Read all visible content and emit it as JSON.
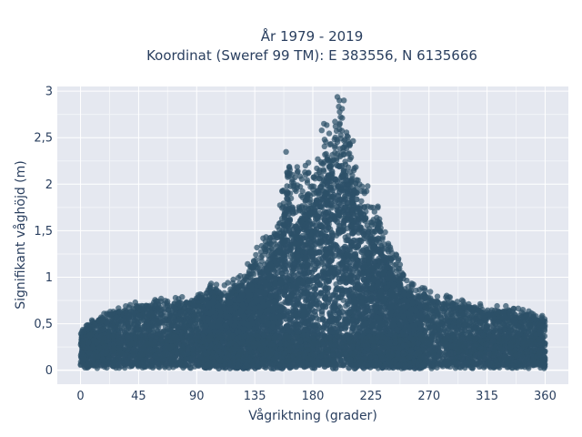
{
  "chart_data": {
    "type": "scatter",
    "title": [
      "År 1979 - 2019",
      "Koordinat (Sweref 99 TM): E 383556, N 6135666"
    ],
    "xlabel": "Vågriktning (grader)",
    "ylabel": "Signifikant våghöjd (m)",
    "xlim": [
      -18,
      378
    ],
    "ylim": [
      -0.15,
      3.05
    ],
    "xticks": [
      0,
      45,
      90,
      135,
      180,
      225,
      270,
      315,
      360
    ],
    "xtick_labels": [
      "0",
      "45",
      "90",
      "135",
      "180",
      "225",
      "270",
      "315",
      "360"
    ],
    "yticks": [
      0,
      0.5,
      1,
      1.5,
      2,
      2.5,
      3
    ],
    "ytick_labels": [
      "0",
      "0,5",
      "1",
      "1,5",
      "2",
      "2,5",
      "3"
    ],
    "grid": true,
    "marker_color": "#2d5068",
    "plot_background": "#e5e8f0",
    "envelope": [
      {
        "x": 0,
        "ymax": 0.45
      },
      {
        "x": 10,
        "ymax": 0.55
      },
      {
        "x": 20,
        "ymax": 0.65
      },
      {
        "x": 45,
        "ymax": 0.75
      },
      {
        "x": 80,
        "ymax": 0.8
      },
      {
        "x": 95,
        "ymax": 0.85
      },
      {
        "x": 100,
        "ymax": 1.0
      },
      {
        "x": 110,
        "ymax": 0.9
      },
      {
        "x": 125,
        "ymax": 1.05
      },
      {
        "x": 135,
        "ymax": 1.3
      },
      {
        "x": 145,
        "ymax": 1.5
      },
      {
        "x": 155,
        "ymax": 1.8
      },
      {
        "x": 160,
        "ymax": 2.45
      },
      {
        "x": 170,
        "ymax": 2.15
      },
      {
        "x": 180,
        "ymax": 2.3
      },
      {
        "x": 185,
        "ymax": 2.6
      },
      {
        "x": 195,
        "ymax": 2.85
      },
      {
        "x": 200,
        "ymax": 2.97
      },
      {
        "x": 205,
        "ymax": 2.95
      },
      {
        "x": 212,
        "ymax": 2.55
      },
      {
        "x": 220,
        "ymax": 2.1
      },
      {
        "x": 228,
        "ymax": 1.85
      },
      {
        "x": 235,
        "ymax": 1.6
      },
      {
        "x": 245,
        "ymax": 1.25
      },
      {
        "x": 255,
        "ymax": 1.0
      },
      {
        "x": 270,
        "ymax": 0.85
      },
      {
        "x": 285,
        "ymax": 0.8
      },
      {
        "x": 300,
        "ymax": 0.75
      },
      {
        "x": 315,
        "ymax": 0.7
      },
      {
        "x": 330,
        "ymax": 0.7
      },
      {
        "x": 345,
        "ymax": 0.65
      },
      {
        "x": 360,
        "ymax": 0.6
      }
    ],
    "ymin_floor": 0.02
  }
}
